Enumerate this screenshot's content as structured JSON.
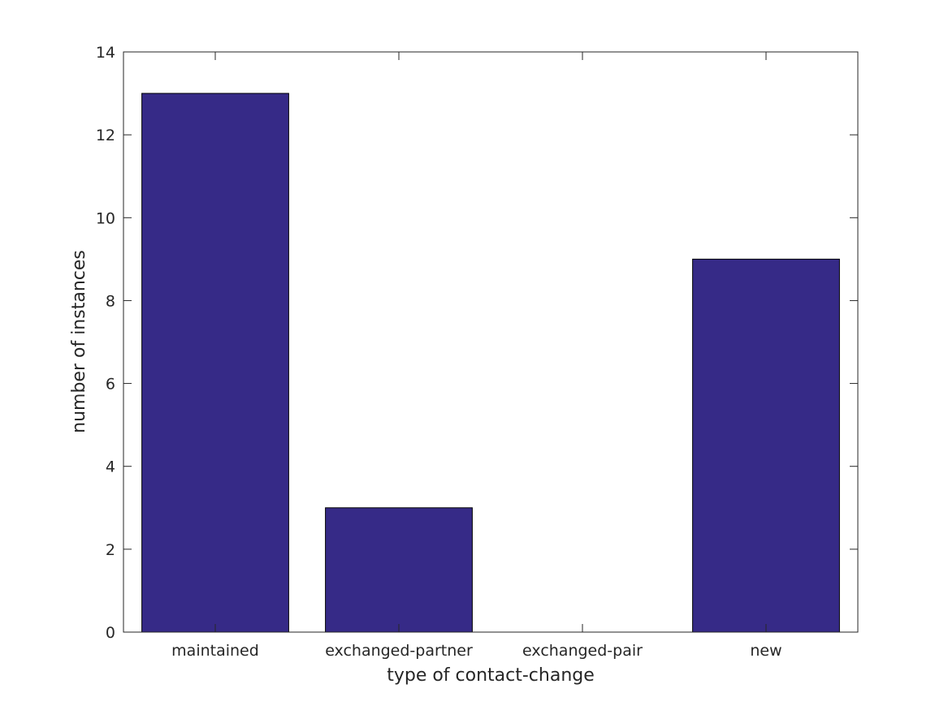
{
  "chart_data": {
    "type": "bar",
    "title": "",
    "xlabel": "type of contact-change",
    "ylabel": "number of instances",
    "categories": [
      "maintained",
      "exchanged-partner",
      "exchanged-pair",
      "new"
    ],
    "values": [
      13,
      3,
      0,
      9
    ],
    "ylim": [
      0,
      14
    ],
    "yticks": [
      0,
      2,
      4,
      6,
      8,
      10,
      12,
      14
    ],
    "grid": false,
    "legend": "none",
    "colors": {
      "bar_fill": "#362a87",
      "bar_edge": "#000000",
      "axis": "#262626"
    }
  }
}
